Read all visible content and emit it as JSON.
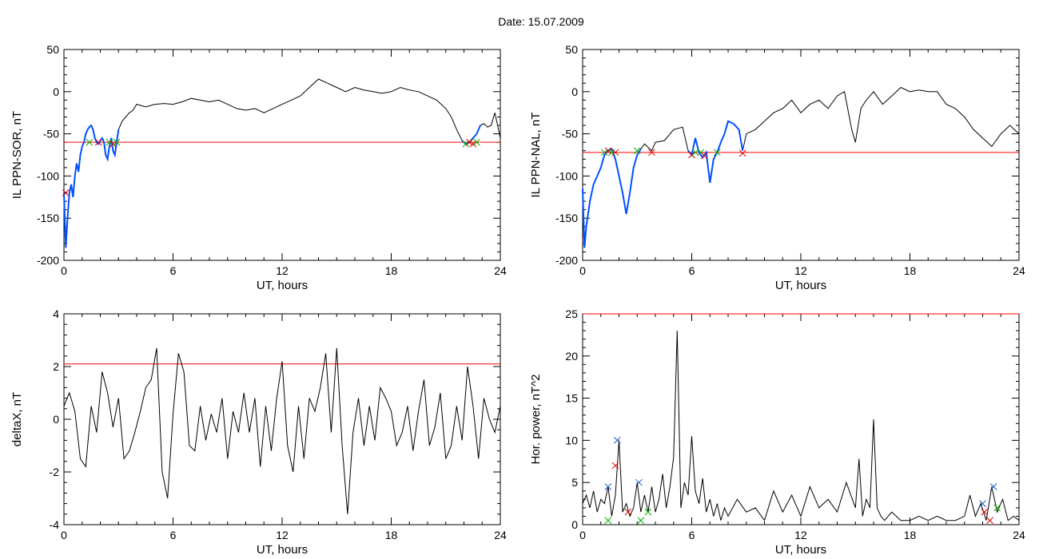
{
  "page": {
    "title": "Date:  15.07.2009"
  },
  "colors": {
    "threshold": "#ff0000",
    "trace": "#000000",
    "highlight": "#0050ff",
    "marker_start": "#00b000",
    "marker_end": "#e00000",
    "marker_peak": "#1a60c8"
  },
  "chart_data": [
    {
      "type": "line",
      "xlabel": "UT, hours",
      "ylabel": "IL PPN-SOR, nT",
      "xlim": [
        0,
        24
      ],
      "ylim": [
        -200,
        50
      ],
      "xticks": [
        "0",
        "6",
        "12",
        "18",
        "24"
      ],
      "yticks": [
        "50",
        "0",
        "-50",
        "-100",
        "-150",
        "-200"
      ],
      "threshold": -60,
      "series": [
        {
          "x": [
            0,
            0.1,
            0.2,
            0.3,
            0.4,
            0.5,
            0.6,
            0.7,
            0.8,
            0.9,
            1.0,
            1.1,
            1.2,
            1.3,
            1.4,
            1.5,
            1.6,
            1.7,
            1.8,
            1.9,
            2.0,
            2.1,
            2.2,
            2.3,
            2.4,
            2.5,
            2.6,
            2.7,
            2.8,
            2.9,
            3.0,
            3.2,
            3.4,
            3.6,
            3.8,
            4.0,
            4.5,
            5.0,
            5.5,
            6.0,
            6.5,
            7.0,
            7.5,
            8.0,
            8.5,
            9.0,
            9.5,
            10.0,
            10.5,
            11.0,
            11.5,
            12.0,
            12.5,
            13.0,
            13.5,
            14.0,
            14.5,
            15.0,
            15.5,
            16.0,
            16.5,
            17.0,
            17.5,
            18.0,
            18.5,
            19.0,
            19.5,
            20.0,
            20.5,
            21.0,
            21.3,
            21.6,
            21.9,
            22.1,
            22.3,
            22.5,
            22.7,
            22.9,
            23.1,
            23.3,
            23.5,
            23.7,
            23.9,
            24.0
          ],
          "y": [
            -120,
            -185,
            -150,
            -120,
            -110,
            -125,
            -100,
            -85,
            -95,
            -75,
            -65,
            -60,
            -50,
            -45,
            -42,
            -40,
            -45,
            -55,
            -60,
            -62,
            -58,
            -55,
            -60,
            -75,
            -80,
            -65,
            -55,
            -70,
            -75,
            -60,
            -45,
            -35,
            -30,
            -25,
            -22,
            -15,
            -18,
            -15,
            -14,
            -15,
            -12,
            -8,
            -10,
            -12,
            -10,
            -15,
            -20,
            -22,
            -20,
            -25,
            -20,
            -15,
            -10,
            -5,
            5,
            15,
            10,
            5,
            0,
            5,
            2,
            0,
            -2,
            0,
            5,
            2,
            0,
            -5,
            -10,
            -20,
            -30,
            -45,
            -58,
            -62,
            -60,
            -55,
            -50,
            -40,
            -38,
            -42,
            -40,
            -25,
            -45,
            -55
          ]
        }
      ],
      "highlight_ranges": [
        [
          0,
          3.0
        ],
        [
          21.9,
          22.9
        ]
      ],
      "markers": [
        {
          "x": 0.1,
          "y": -120,
          "kind": "end"
        },
        {
          "x": 1.4,
          "y": -60,
          "kind": "start"
        },
        {
          "x": 1.9,
          "y": -60,
          "kind": "end"
        },
        {
          "x": 2.5,
          "y": -60,
          "kind": "start"
        },
        {
          "x": 2.7,
          "y": -62,
          "kind": "end"
        },
        {
          "x": 2.9,
          "y": -60,
          "kind": "start"
        },
        {
          "x": 22.1,
          "y": -62,
          "kind": "start"
        },
        {
          "x": 22.3,
          "y": -60,
          "kind": "end"
        },
        {
          "x": 22.5,
          "y": -62,
          "kind": "end"
        },
        {
          "x": 22.7,
          "y": -60,
          "kind": "start"
        }
      ]
    },
    {
      "type": "line",
      "xlabel": "UT, hours",
      "ylabel": "IL PPN-NAL, nT",
      "xlim": [
        0,
        24
      ],
      "ylim": [
        -200,
        50
      ],
      "xticks": [
        "0",
        "6",
        "12",
        "18",
        "24"
      ],
      "yticks": [
        "50",
        "0",
        "-50",
        "-100",
        "-150",
        "-200"
      ],
      "threshold": -72,
      "series": [
        {
          "x": [
            0,
            0.1,
            0.2,
            0.4,
            0.6,
            0.8,
            1.0,
            1.2,
            1.4,
            1.6,
            1.8,
            2.0,
            2.2,
            2.4,
            2.6,
            2.8,
            3.0,
            3.2,
            3.4,
            3.6,
            3.8,
            4.0,
            4.5,
            5.0,
            5.5,
            5.8,
            6.0,
            6.2,
            6.4,
            6.6,
            6.8,
            7.0,
            7.2,
            7.4,
            7.6,
            7.8,
            8.0,
            8.3,
            8.6,
            8.8,
            9.0,
            9.5,
            10.0,
            10.5,
            11.0,
            11.5,
            12.0,
            12.5,
            13.0,
            13.5,
            14.0,
            14.4,
            14.8,
            15.0,
            15.3,
            15.6,
            16.0,
            16.5,
            17.0,
            17.5,
            18.0,
            18.5,
            19.0,
            19.5,
            20.0,
            20.5,
            21.0,
            21.5,
            22.0,
            22.5,
            23.0,
            23.5,
            24.0
          ],
          "y": [
            -115,
            -185,
            -160,
            -130,
            -110,
            -100,
            -90,
            -75,
            -70,
            -68,
            -80,
            -100,
            -120,
            -145,
            -120,
            -90,
            -75,
            -68,
            -62,
            -66,
            -70,
            -60,
            -58,
            -45,
            -42,
            -70,
            -75,
            -55,
            -72,
            -78,
            -72,
            -108,
            -80,
            -72,
            -60,
            -50,
            -35,
            -38,
            -45,
            -70,
            -50,
            -45,
            -35,
            -25,
            -20,
            -10,
            -25,
            -15,
            -10,
            -20,
            -5,
            0,
            -45,
            -60,
            -20,
            -10,
            0,
            -15,
            -5,
            5,
            0,
            2,
            0,
            0,
            -15,
            -20,
            -30,
            -45,
            -55,
            -65,
            -50,
            -40,
            -50
          ]
        }
      ],
      "highlight_ranges": [
        [
          0,
          3.2
        ],
        [
          5.8,
          8.8
        ]
      ],
      "markers": [
        {
          "x": 1.2,
          "y": -72,
          "kind": "start"
        },
        {
          "x": 1.4,
          "y": -70,
          "kind": "end"
        },
        {
          "x": 1.6,
          "y": -72,
          "kind": "start"
        },
        {
          "x": 1.8,
          "y": -72,
          "kind": "end"
        },
        {
          "x": 3.0,
          "y": -70,
          "kind": "start"
        },
        {
          "x": 3.8,
          "y": -72,
          "kind": "end"
        },
        {
          "x": 6.0,
          "y": -75,
          "kind": "end"
        },
        {
          "x": 6.2,
          "y": -72,
          "kind": "start"
        },
        {
          "x": 6.5,
          "y": -72,
          "kind": "start"
        },
        {
          "x": 6.7,
          "y": -76,
          "kind": "end"
        },
        {
          "x": 7.4,
          "y": -72,
          "kind": "start"
        },
        {
          "x": 8.8,
          "y": -73,
          "kind": "end"
        }
      ]
    },
    {
      "type": "line",
      "xlabel": "UT, hours",
      "ylabel": "deltaX, nT",
      "xlim": [
        0,
        24
      ],
      "ylim": [
        -4,
        4
      ],
      "xticks": [
        "0",
        "6",
        "12",
        "18",
        "24"
      ],
      "yticks": [
        "4",
        "2",
        "0",
        "-2",
        "-4"
      ],
      "threshold": 2.1,
      "series": [
        {
          "x": [
            0,
            0.3,
            0.6,
            0.9,
            1.2,
            1.5,
            1.8,
            2.1,
            2.4,
            2.7,
            3.0,
            3.3,
            3.6,
            3.9,
            4.2,
            4.5,
            4.8,
            5.1,
            5.4,
            5.7,
            6.0,
            6.3,
            6.6,
            6.9,
            7.2,
            7.5,
            7.8,
            8.1,
            8.4,
            8.7,
            9.0,
            9.3,
            9.6,
            9.9,
            10.2,
            10.5,
            10.8,
            11.1,
            11.4,
            11.7,
            12.0,
            12.3,
            12.6,
            12.9,
            13.2,
            13.5,
            13.8,
            14.1,
            14.4,
            14.7,
            15.0,
            15.3,
            15.6,
            15.9,
            16.2,
            16.5,
            16.8,
            17.1,
            17.4,
            17.7,
            18.0,
            18.3,
            18.6,
            18.9,
            19.2,
            19.5,
            19.8,
            20.1,
            20.4,
            20.7,
            21.0,
            21.3,
            21.6,
            21.9,
            22.2,
            22.5,
            22.8,
            23.1,
            23.4,
            23.7,
            24.0
          ],
          "y": [
            0.5,
            1.0,
            0.3,
            -1.5,
            -1.8,
            0.5,
            -0.5,
            1.8,
            1.0,
            -0.3,
            0.8,
            -1.5,
            -1.2,
            -0.5,
            0.3,
            1.2,
            1.5,
            2.7,
            -2.0,
            -3.0,
            0.2,
            2.5,
            1.8,
            -1.0,
            -1.2,
            0.5,
            -0.8,
            0.2,
            -0.5,
            0.8,
            -1.5,
            0.3,
            -0.5,
            1.0,
            -0.5,
            0.8,
            -1.8,
            0.5,
            -1.2,
            0.8,
            2.2,
            -1.0,
            -2.0,
            0.5,
            -1.5,
            0.8,
            0.3,
            1.2,
            2.5,
            -0.5,
            2.7,
            -1.0,
            -3.6,
            -0.5,
            0.8,
            -1.0,
            0.5,
            -0.8,
            1.2,
            0.8,
            0.3,
            -1.0,
            -0.5,
            0.5,
            -1.2,
            0.3,
            1.5,
            -1.0,
            -0.3,
            1.0,
            -1.5,
            -1.0,
            0.5,
            -0.8,
            2.0,
            0.5,
            -1.5,
            0.8,
            0.0,
            -0.5,
            0.5
          ]
        }
      ]
    },
    {
      "type": "line",
      "xlabel": "UT, hours",
      "ylabel": "Hor. power, nT^2",
      "xlim": [
        0,
        24
      ],
      "ylim": [
        0,
        25
      ],
      "xticks": [
        "0",
        "6",
        "12",
        "18",
        "24"
      ],
      "yticks": [
        "25",
        "20",
        "15",
        "10",
        "5",
        "0"
      ],
      "threshold": 25,
      "series": [
        {
          "x": [
            0,
            0.2,
            0.4,
            0.6,
            0.8,
            1.0,
            1.2,
            1.4,
            1.6,
            1.8,
            2.0,
            2.2,
            2.4,
            2.6,
            2.8,
            3.0,
            3.2,
            3.4,
            3.6,
            3.8,
            4.0,
            4.2,
            4.4,
            4.6,
            4.8,
            5.0,
            5.2,
            5.4,
            5.6,
            5.8,
            6.0,
            6.2,
            6.4,
            6.6,
            6.8,
            7.0,
            7.2,
            7.4,
            7.6,
            7.8,
            8.0,
            8.5,
            9.0,
            9.5,
            10.0,
            10.5,
            11.0,
            11.5,
            12.0,
            12.5,
            13.0,
            13.5,
            14.0,
            14.5,
            15.0,
            15.2,
            15.4,
            15.6,
            15.8,
            16.0,
            16.2,
            16.4,
            16.6,
            17.0,
            17.5,
            18.0,
            18.5,
            19.0,
            19.5,
            20.0,
            20.5,
            21.0,
            21.3,
            21.6,
            21.9,
            22.2,
            22.5,
            22.8,
            23.1,
            23.4,
            23.7,
            24.0
          ],
          "y": [
            2.5,
            3.5,
            2.0,
            4.0,
            1.5,
            3.0,
            2.5,
            4.5,
            1.0,
            3.5,
            10.0,
            1.5,
            2.5,
            1.0,
            2.0,
            5.0,
            1.5,
            3.5,
            1.5,
            4.5,
            1.5,
            3.0,
            6.0,
            2.0,
            4.5,
            8.0,
            23.0,
            2.0,
            5.0,
            3.5,
            10.5,
            4.0,
            2.5,
            5.5,
            1.5,
            3.0,
            1.0,
            2.5,
            0.5,
            2.0,
            1.0,
            3.0,
            1.5,
            2.0,
            0.5,
            4.0,
            1.5,
            3.5,
            1.0,
            4.5,
            2.0,
            3.0,
            1.5,
            5.0,
            2.0,
            7.8,
            1.0,
            3.0,
            2.0,
            12.5,
            2.0,
            1.0,
            0.5,
            1.5,
            0.5,
            0.5,
            1.0,
            0.5,
            1.0,
            0.5,
            0.5,
            1.0,
            3.5,
            1.0,
            2.5,
            0.5,
            4.5,
            1.5,
            3.0,
            0.5,
            1.0,
            0.5
          ]
        }
      ],
      "markers": [
        {
          "x": 1.4,
          "y": 4.5,
          "kind": "peak"
        },
        {
          "x": 1.4,
          "y": 0.5,
          "kind": "start"
        },
        {
          "x": 1.8,
          "y": 7.0,
          "kind": "end"
        },
        {
          "x": 1.9,
          "y": 10.0,
          "kind": "peak"
        },
        {
          "x": 2.5,
          "y": 1.5,
          "kind": "end"
        },
        {
          "x": 3.1,
          "y": 5.0,
          "kind": "peak"
        },
        {
          "x": 3.2,
          "y": 0.5,
          "kind": "start"
        },
        {
          "x": 3.6,
          "y": 1.5,
          "kind": "start"
        },
        {
          "x": 22.0,
          "y": 2.5,
          "kind": "peak"
        },
        {
          "x": 22.1,
          "y": 1.5,
          "kind": "end"
        },
        {
          "x": 22.4,
          "y": 0.5,
          "kind": "end"
        },
        {
          "x": 22.6,
          "y": 4.5,
          "kind": "peak"
        },
        {
          "x": 22.8,
          "y": 2.0,
          "kind": "start"
        }
      ]
    }
  ]
}
